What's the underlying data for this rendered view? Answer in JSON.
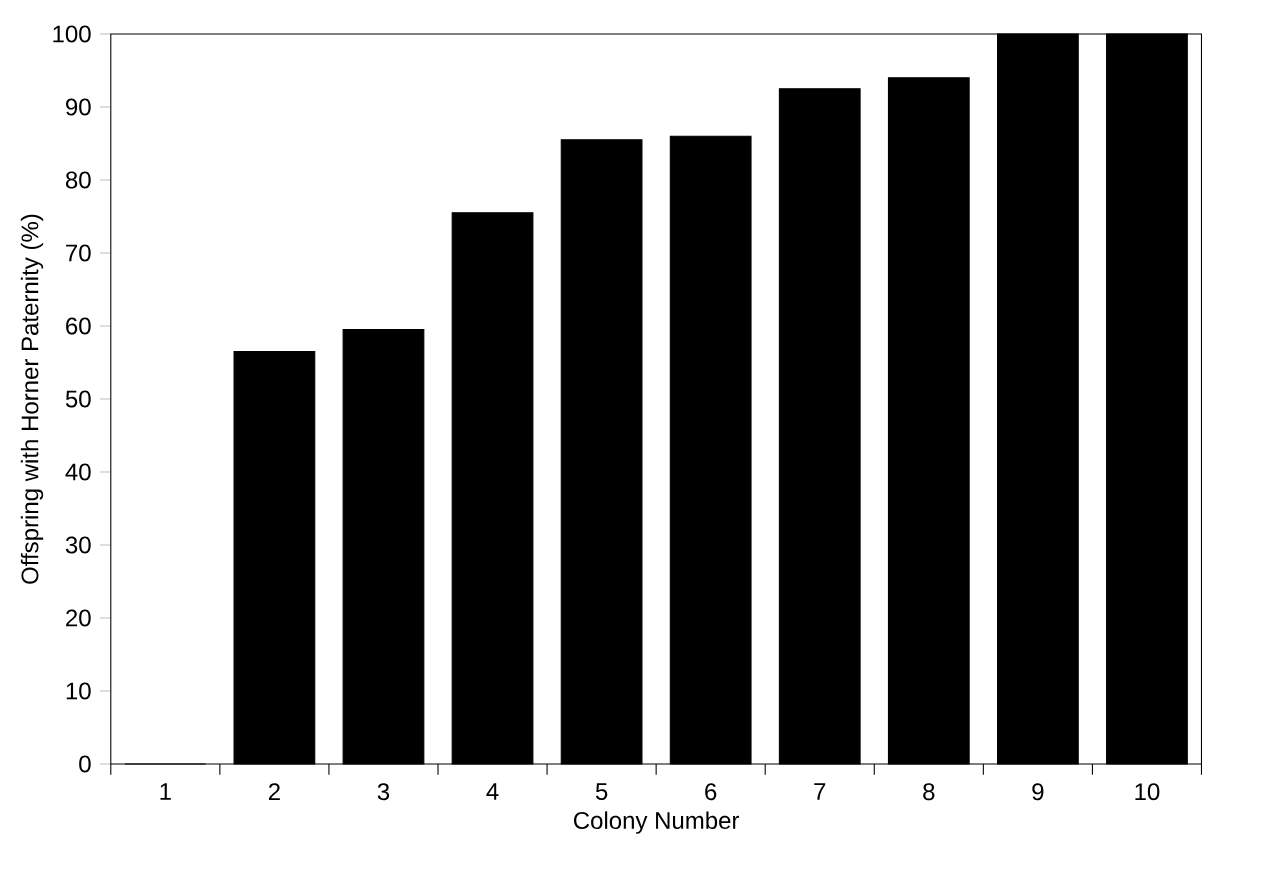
{
  "chart_data": {
    "type": "bar",
    "xlabel": "Colony Number",
    "ylabel": "Offspring with Horner Paternity (%)",
    "categories": [
      "1",
      "2",
      "3",
      "4",
      "5",
      "6",
      "7",
      "8",
      "9",
      "10"
    ],
    "values": [
      0,
      56.5,
      59.5,
      75.5,
      85.5,
      86,
      92.5,
      94,
      100,
      100
    ],
    "color": "#000000",
    "ylim": [
      0,
      100
    ],
    "yticks": [
      0,
      10,
      20,
      30,
      40,
      50,
      60,
      70,
      80,
      90,
      100
    ]
  }
}
